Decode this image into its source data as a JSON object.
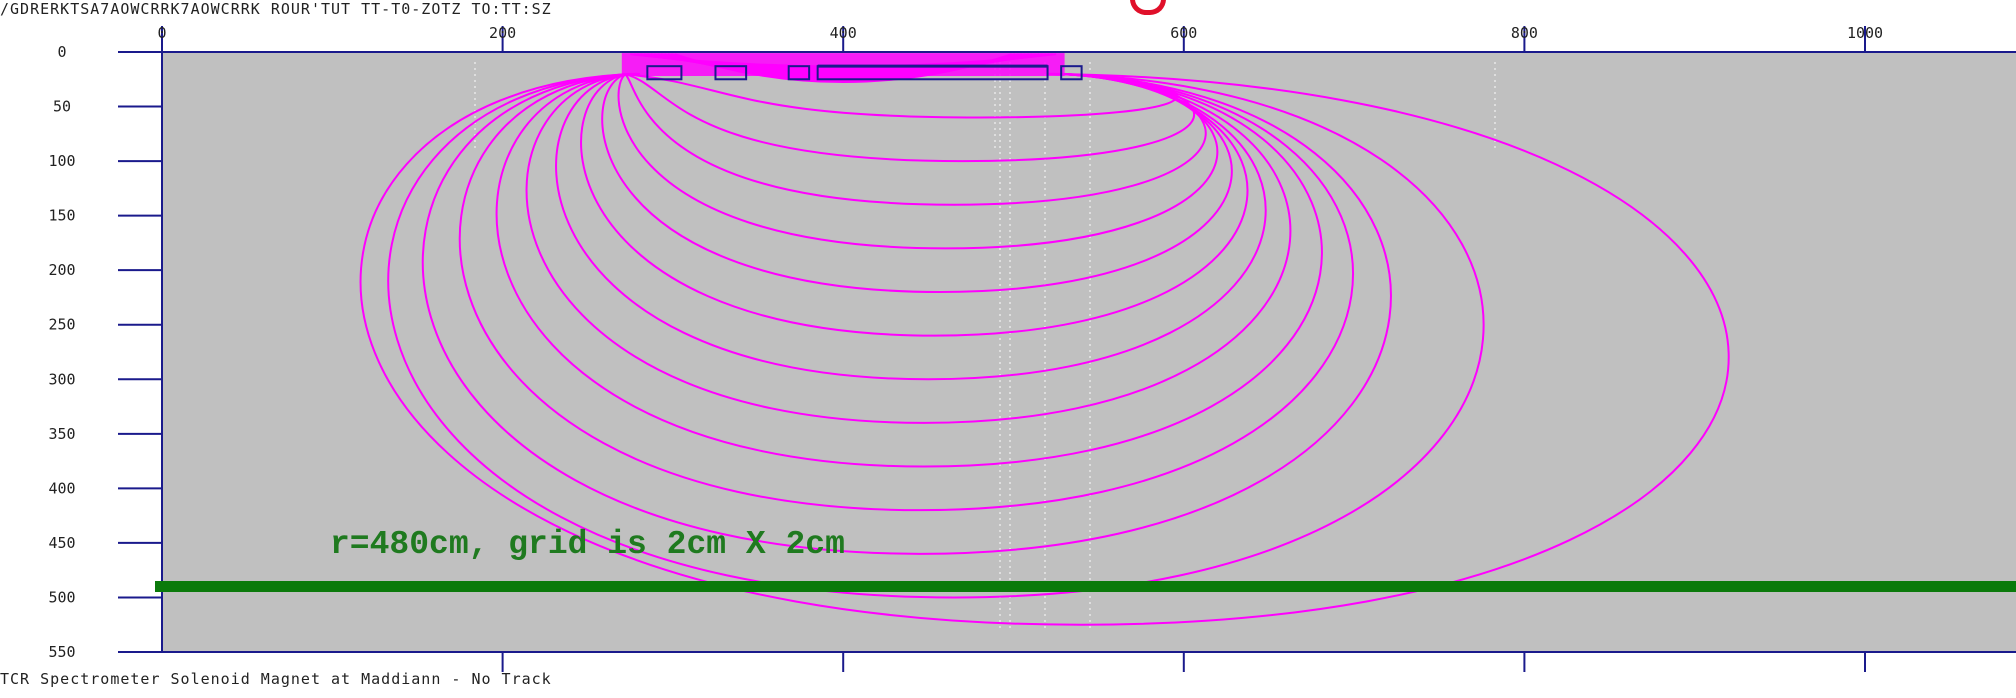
{
  "header": {
    "path_text": "/GDRERKTSA7AOWCRRK7AOWCRRK ROUR'TUT TT-T0-ZOTZ TO:TT:SZ"
  },
  "footer": {
    "caption_text": "TCR  Spectrometer  Solenoid  Magnet  at  Maddiann  -  No  Track"
  },
  "annotation": {
    "text": "r=480cm, grid is 2cm X 2cm",
    "color": "#1f7a1f"
  },
  "chart_data": {
    "type": "contour",
    "x_axis": {
      "range": [
        0,
        1000
      ],
      "ticks": [
        0,
        200,
        400,
        600,
        800,
        1000
      ],
      "tick_labels": [
        "0",
        "200",
        "400",
        "600",
        "800",
        "1000"
      ]
    },
    "y_axis": {
      "range": [
        0,
        550
      ],
      "ticks": [
        0,
        50,
        100,
        150,
        200,
        250,
        300,
        350,
        400,
        450,
        500,
        550
      ],
      "tick_labels": [
        "0",
        "50",
        "100",
        "150",
        "200",
        "250",
        "300",
        "350",
        "400",
        "450",
        "500",
        "550"
      ],
      "inverted": true
    },
    "contour_color": "#ff00ff",
    "background_color": "#c0c0c0",
    "frame_color": "#1a1a8c",
    "green_line_y": 490,
    "green_line_color": "#0b7a0b",
    "source": {
      "x_range": [
        270,
        530
      ],
      "depth": 20
    },
    "contours": [
      {
        "x_left": 335,
        "x_right": 625,
        "depth": 60
      },
      {
        "x_left": 300,
        "x_right": 640,
        "depth": 100
      },
      {
        "x_left": 280,
        "x_right": 650,
        "depth": 140
      },
      {
        "x_left": 260,
        "x_right": 660,
        "depth": 180
      },
      {
        "x_left": 242,
        "x_right": 672,
        "depth": 220
      },
      {
        "x_left": 222,
        "x_right": 685,
        "depth": 260
      },
      {
        "x_left": 200,
        "x_right": 700,
        "depth": 300
      },
      {
        "x_left": 175,
        "x_right": 720,
        "depth": 340
      },
      {
        "x_left": 150,
        "x_right": 745,
        "depth": 380
      },
      {
        "x_left": 120,
        "x_right": 770,
        "depth": 420
      },
      {
        "x_left": 90,
        "x_right": 800,
        "depth": 460
      },
      {
        "x_left": 60,
        "x_right": 870,
        "depth": 500
      },
      {
        "x_left": 30,
        "x_right": 1050,
        "depth": 525
      }
    ],
    "detector_boxes": [
      {
        "x": 285,
        "w": 20
      },
      {
        "x": 325,
        "w": 18
      },
      {
        "x": 368,
        "w": 12
      },
      {
        "x": 385,
        "w": 135
      },
      {
        "x": 528,
        "w": 12
      }
    ]
  }
}
